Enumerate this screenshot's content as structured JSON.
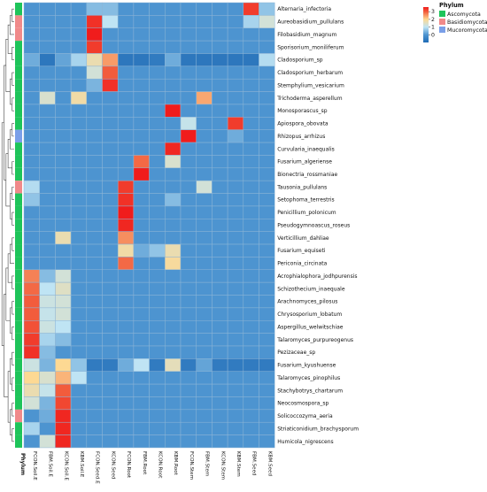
{
  "chart_data": {
    "type": "heatmap",
    "rows": [
      "Alternaria_infectoria",
      "Aureobasidium_pullulans",
      "Filobasidium_magnum",
      "Sporisorium_moniliferum",
      "Cladosporium_sp",
      "Cladosporium_herbarum",
      "Stemphylium_vesicarium",
      "Trichoderma_asperellum",
      "Monosporascus_sp",
      "Apiospora_obovata",
      "Rhizopus_arrhizus",
      "Curvularia_inaequalis",
      "Fusarium_algeriense",
      "Bionectria_rossmaniae",
      "Tausonia_pullulans",
      "Setophoma_terrestris",
      "Penicillium_polonicum",
      "Pseudogymnoascus_roseus",
      "Verticillium_dahliae",
      "Fusarium_equiseti",
      "Periconia_circinata",
      "Acrophialophora_jodhpurensis",
      "Schizothecium_inaequale",
      "Arachnomyces_pilosus",
      "Chrysosporium_lobatum",
      "Aspergillus_welwitschiae",
      "Talaromyces_purpureogenus",
      "Pezizaceae_sp",
      "Fusarium_kyushuense",
      "Talaromyces_pinophilus",
      "Stachybotrys_chartarum",
      "Neocosmospora_sp",
      "Solicoccozyma_aeria",
      "Striaticonidium_brachysporum",
      "Humicola_nigrescens"
    ],
    "columns": [
      "FCON.Soil.E",
      "FBM.Soil.E",
      "KCON.Soil.E",
      "KBM.Soil.E",
      "FCON.Seed.E",
      "KCON.Seed",
      "FCON.Root",
      "FBM.Root",
      "KCON.Root",
      "KBM.Root",
      "FCON.Stem",
      "FBM.Stem",
      "KCON.Stem",
      "KBM.Stem",
      "FBM.Seed",
      "KBM.Seed"
    ],
    "values": [
      [
        0,
        0,
        0,
        0,
        0.5,
        0.5,
        0,
        0,
        0,
        0,
        0,
        0,
        0,
        0,
        3.3,
        0.6
      ],
      [
        0,
        0,
        0,
        0,
        3.4,
        1.0,
        0,
        0,
        0,
        0,
        0,
        0,
        0,
        0,
        0.8,
        1.3
      ],
      [
        0,
        0,
        0,
        0,
        3.6,
        0,
        0,
        0,
        0,
        0,
        0,
        0,
        0,
        0,
        0,
        0
      ],
      [
        0,
        0,
        0,
        0,
        3.3,
        0,
        0,
        0,
        0,
        0,
        0,
        0,
        0,
        0,
        0,
        0
      ],
      [
        0.3,
        -0.7,
        0.2,
        0.8,
        1.7,
        2.5,
        -0.7,
        -0.7,
        -0.6,
        0.3,
        -0.7,
        -0.7,
        -0.7,
        -0.7,
        -0.7,
        0.9
      ],
      [
        0,
        0,
        0,
        0,
        1.3,
        3.0,
        0,
        0,
        0,
        0,
        0,
        0,
        0,
        0,
        0,
        0
      ],
      [
        0,
        0,
        0,
        0,
        0.4,
        3.4,
        0,
        0,
        0,
        0,
        0,
        0,
        0,
        0,
        0,
        0
      ],
      [
        0,
        1.4,
        0,
        1.8,
        0,
        0,
        0,
        0,
        0,
        0,
        0,
        2.4,
        0,
        0,
        0,
        0
      ],
      [
        0,
        0,
        0,
        0,
        0,
        0,
        0,
        0,
        0,
        3.6,
        0,
        0,
        0,
        0,
        0,
        0
      ],
      [
        0,
        0,
        0,
        0,
        0,
        0,
        0,
        0,
        0,
        0,
        1.1,
        0,
        0,
        3.3,
        0,
        0
      ],
      [
        0,
        0,
        0,
        0,
        0,
        0,
        0,
        0,
        0,
        0,
        3.6,
        0,
        0,
        0.3,
        0,
        0
      ],
      [
        0,
        0,
        0,
        0,
        0,
        0,
        0,
        0,
        0,
        3.5,
        0,
        0,
        0,
        0,
        0,
        0
      ],
      [
        0,
        0,
        0,
        0,
        0,
        0,
        0,
        2.9,
        0,
        1.4,
        0,
        0,
        0,
        0,
        0,
        0
      ],
      [
        0,
        0,
        0,
        0,
        0,
        0,
        0,
        3.6,
        0,
        0,
        0,
        0,
        0,
        0,
        0,
        0
      ],
      [
        0.9,
        0,
        0,
        0,
        0,
        0,
        3.3,
        0,
        0,
        0,
        0,
        1.3,
        0,
        0,
        0,
        0
      ],
      [
        0.6,
        0,
        0,
        0,
        0,
        0,
        3.4,
        0,
        0,
        0.5,
        0,
        0,
        0,
        0,
        0,
        0
      ],
      [
        0,
        0,
        0,
        0,
        0,
        0,
        3.6,
        0,
        0,
        0,
        0,
        0,
        0,
        0,
        0,
        0
      ],
      [
        0,
        0,
        0,
        0,
        0,
        0,
        3.5,
        0,
        0,
        0,
        0,
        0,
        0,
        0,
        0,
        0
      ],
      [
        0,
        0,
        1.7,
        0,
        0,
        0,
        2.6,
        0,
        0,
        0,
        0,
        0,
        0,
        0,
        0,
        0
      ],
      [
        0,
        0,
        0,
        0,
        0,
        0,
        1.8,
        0.3,
        0.6,
        1.7,
        0,
        0,
        0,
        0,
        0,
        0
      ],
      [
        0,
        0,
        0,
        0,
        0,
        0,
        2.9,
        0,
        0,
        1.9,
        0,
        0,
        0,
        0,
        0,
        0
      ],
      [
        2.7,
        0.5,
        1.3,
        0,
        0,
        0,
        0,
        0,
        0,
        0,
        0,
        0,
        0,
        0,
        0,
        0
      ],
      [
        2.9,
        1.0,
        1.5,
        0,
        0,
        0,
        0,
        0,
        0,
        0,
        0,
        0,
        0,
        0,
        0,
        0
      ],
      [
        3.0,
        1.2,
        1.3,
        0,
        0,
        0,
        0,
        0,
        0,
        0,
        0,
        0,
        0,
        0,
        0,
        0
      ],
      [
        3.0,
        1.1,
        1.3,
        0,
        0,
        0,
        0,
        0,
        0,
        0,
        0,
        0,
        0,
        0,
        0,
        0
      ],
      [
        3.1,
        1.2,
        1.0,
        0,
        0,
        0,
        0,
        0,
        0,
        0,
        0,
        0,
        0,
        0,
        0,
        0
      ],
      [
        3.3,
        0.8,
        0.5,
        0,
        0,
        0,
        0,
        0,
        0,
        0,
        0,
        0,
        0,
        0,
        0,
        0
      ],
      [
        3.4,
        0.5,
        0,
        0,
        0,
        0,
        0,
        0,
        0,
        0,
        0,
        0,
        0,
        0,
        0,
        0
      ],
      [
        1.2,
        0.4,
        2.0,
        0.6,
        -0.6,
        -0.6,
        0.3,
        1.0,
        -0.6,
        1.6,
        -0.6,
        0.2,
        -0.6,
        -0.6,
        -0.6,
        -0.6
      ],
      [
        2.0,
        1.4,
        2.3,
        1.0,
        0,
        0,
        0,
        0,
        0,
        0,
        0,
        0,
        0,
        0,
        0,
        0
      ],
      [
        1.7,
        1.1,
        3.0,
        0,
        0,
        0,
        0,
        0,
        0,
        0,
        0,
        0,
        0,
        0,
        0,
        0
      ],
      [
        1.3,
        0.4,
        3.2,
        0,
        0,
        0,
        0,
        0,
        0,
        0,
        0,
        0,
        0,
        0,
        0,
        0
      ],
      [
        0,
        0.3,
        3.5,
        0,
        0,
        0,
        0,
        0,
        0,
        0,
        0,
        0,
        0,
        0,
        0,
        0
      ],
      [
        0.8,
        0,
        3.5,
        0,
        0,
        0,
        0,
        0,
        0,
        0,
        0,
        0,
        0,
        0,
        0,
        0
      ],
      [
        0,
        1.3,
        3.5,
        0,
        0,
        0,
        0,
        0,
        0,
        0,
        0,
        0,
        0,
        0,
        0,
        0
      ]
    ],
    "color_scale": {
      "min": -1,
      "max": 3.6,
      "stops": [
        {
          "value": -1,
          "color": "#1f6bb5"
        },
        {
          "value": 0,
          "color": "#4d94d0"
        },
        {
          "value": 1,
          "color": "#bfe4f4"
        },
        {
          "value": 2,
          "color": "#fdd993"
        },
        {
          "value": 3,
          "color": "#f25c3c"
        },
        {
          "value": 3.6,
          "color": "#f01c1c"
        }
      ],
      "ticks": [
        "3",
        "2",
        "1",
        "0"
      ]
    },
    "row_annotation": {
      "title": "Phylum",
      "values": [
        "Ascomycota",
        "Basidiomycota",
        "Basidiomycota",
        "Ascomycota",
        "Ascomycota",
        "Ascomycota",
        "Ascomycota",
        "Ascomycota",
        "Ascomycota",
        "Ascomycota",
        "Mucoromycota",
        "Ascomycota",
        "Ascomycota",
        "Ascomycota",
        "Basidiomycota",
        "Ascomycota",
        "Ascomycota",
        "Ascomycota",
        "Ascomycota",
        "Ascomycota",
        "Ascomycota",
        "Ascomycota",
        "Ascomycota",
        "Ascomycota",
        "Ascomycota",
        "Ascomycota",
        "Ascomycota",
        "Ascomycota",
        "Ascomycota",
        "Ascomycota",
        "Ascomycota",
        "Ascomycota",
        "Basidiomycota",
        "Ascomycota",
        "Ascomycota"
      ]
    },
    "legend": {
      "title": "Phylum",
      "position": "top-right",
      "items": [
        {
          "label": "Ascomycota",
          "color": "#1ec45a"
        },
        {
          "label": "Basidiomycota",
          "color": "#f08a8a"
        },
        {
          "label": "Mucoromycota",
          "color": "#7a9fe8"
        }
      ]
    },
    "row_dendrogram": true,
    "cell_borders": "#8db5d6"
  }
}
